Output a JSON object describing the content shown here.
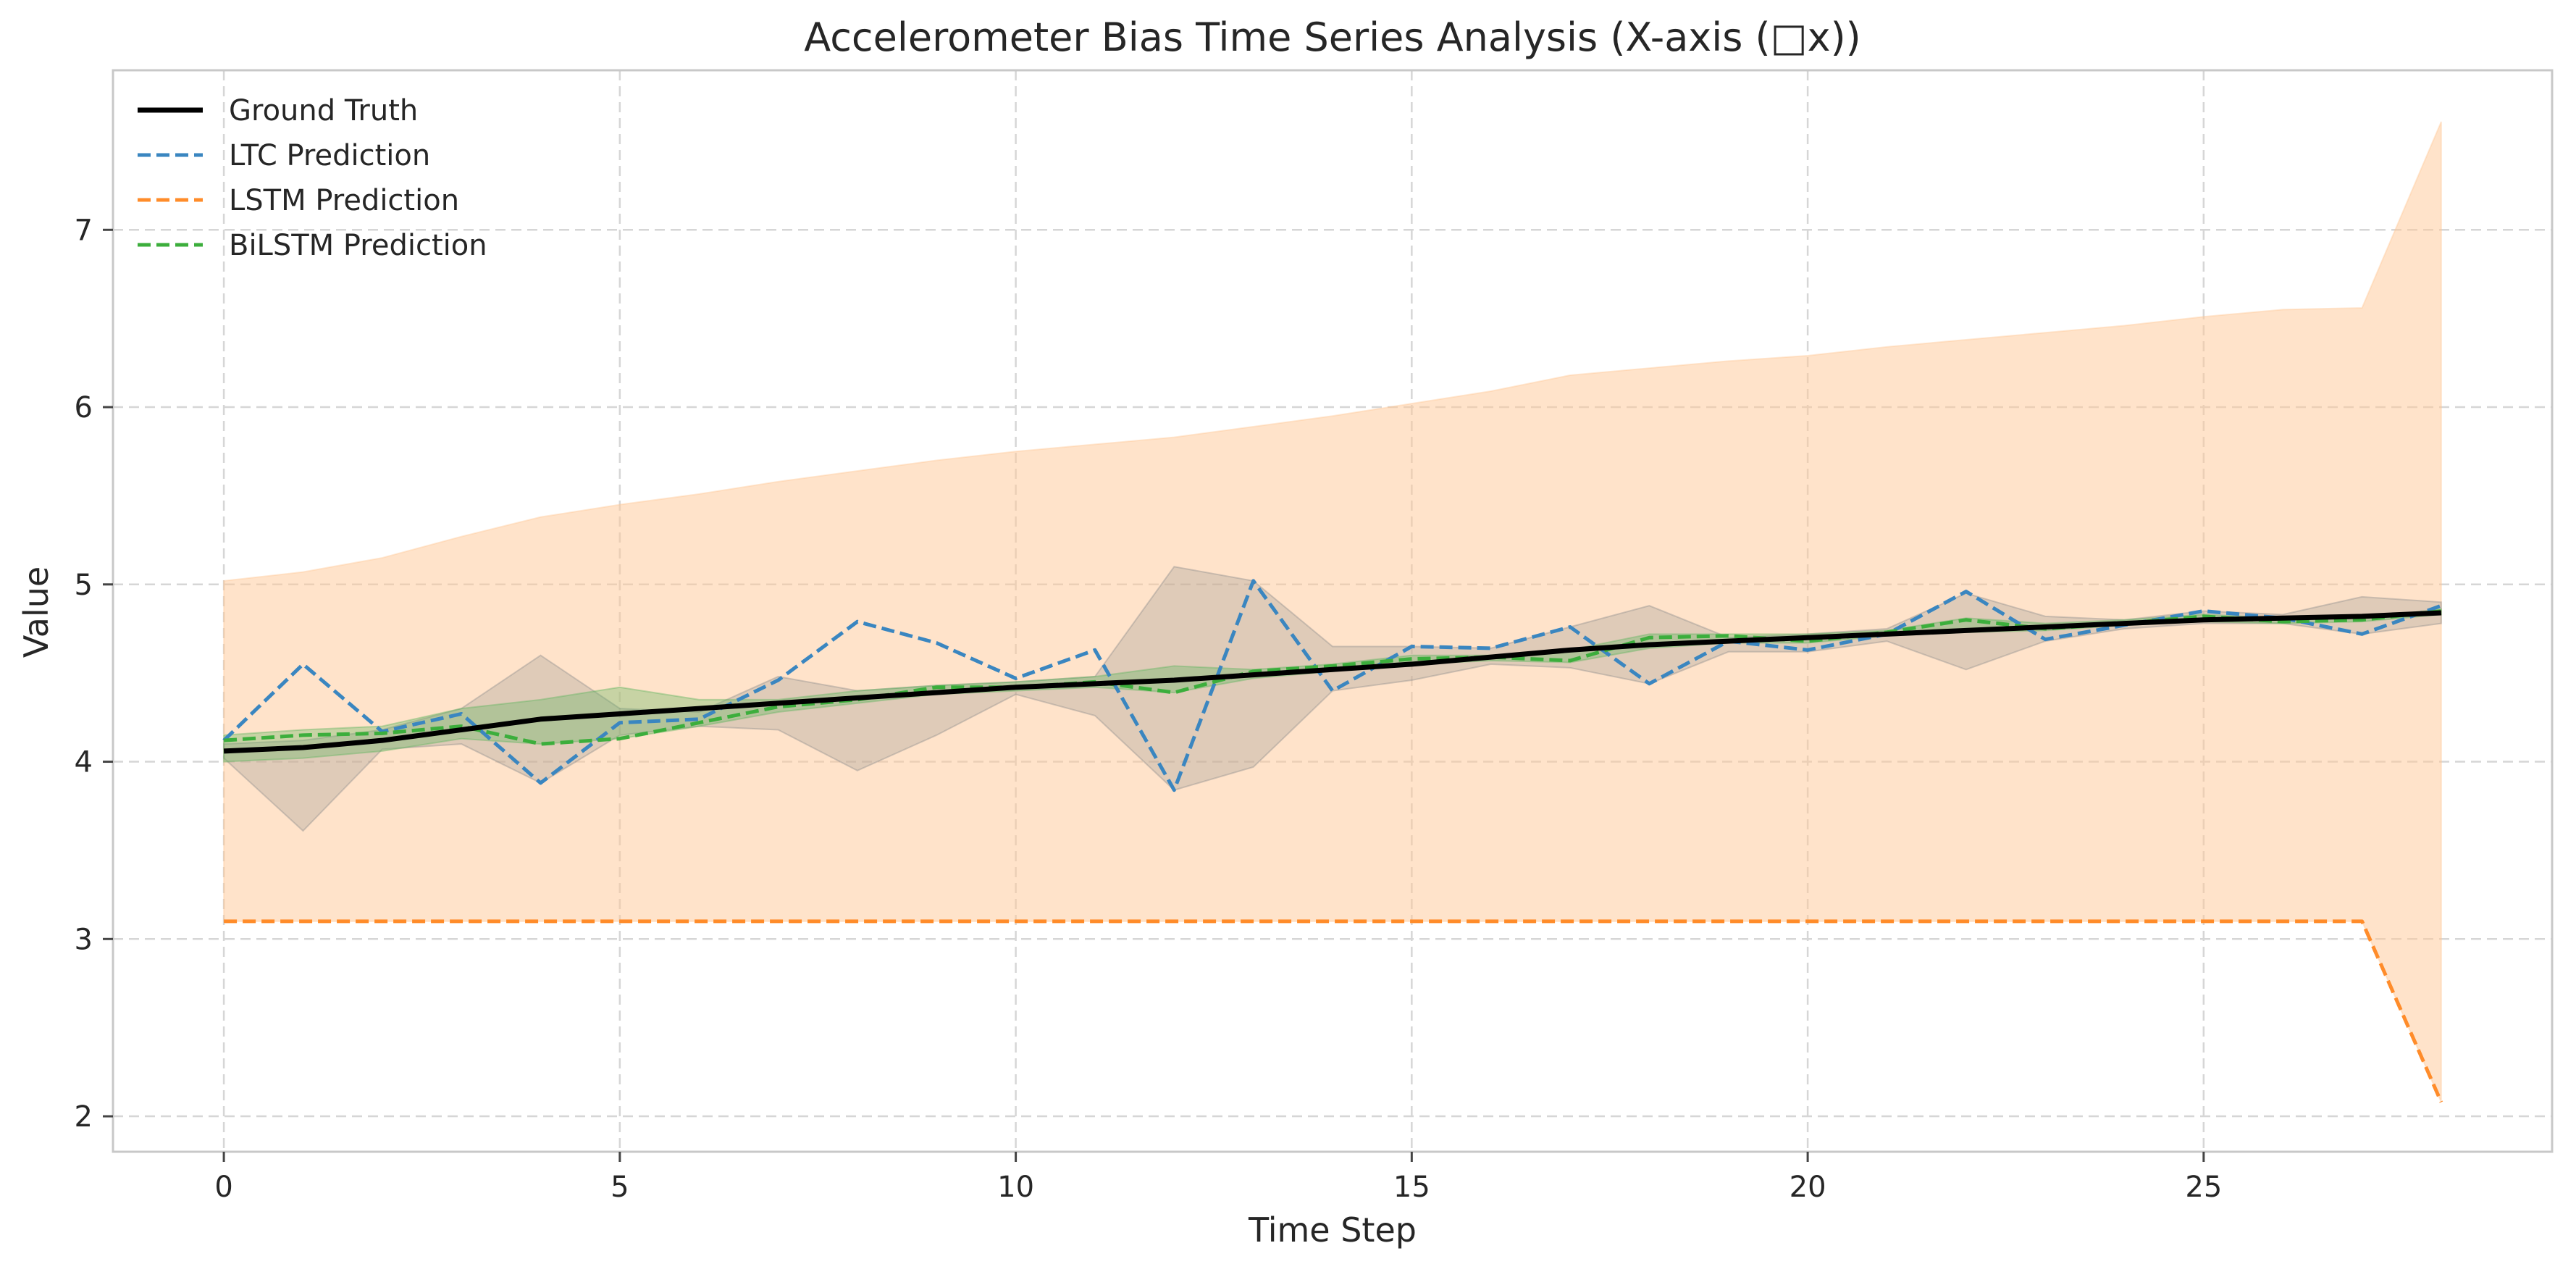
{
  "chart_data": {
    "type": "line",
    "title": "Accelerometer Bias Time Series Analysis (X-axis (□x))",
    "xlabel": "Time Step",
    "ylabel": "Value",
    "xlim": [
      -1.4,
      29.4
    ],
    "ylim": [
      1.8,
      7.9
    ],
    "xticks": [
      0,
      5,
      10,
      15,
      20,
      25
    ],
    "yticks": [
      2,
      3,
      4,
      5,
      6,
      7
    ],
    "grid": true,
    "legend_position": "top-left",
    "x": [
      0,
      1,
      2,
      3,
      4,
      5,
      6,
      7,
      8,
      9,
      10,
      11,
      12,
      13,
      14,
      15,
      16,
      17,
      18,
      19,
      20,
      21,
      22,
      23,
      24,
      25,
      26,
      27,
      28
    ],
    "series": [
      {
        "name": "Ground Truth",
        "color": "#000000",
        "dash": "solid",
        "values": [
          4.06,
          4.08,
          4.12,
          4.18,
          4.24,
          4.27,
          4.3,
          4.33,
          4.36,
          4.39,
          4.42,
          4.44,
          4.46,
          4.49,
          4.52,
          4.55,
          4.59,
          4.63,
          4.66,
          4.68,
          4.7,
          4.72,
          4.74,
          4.76,
          4.78,
          4.8,
          4.81,
          4.82,
          4.84
        ]
      },
      {
        "name": "LTC Prediction",
        "color": "#3a86c0",
        "dash": "dashed",
        "values": [
          4.12,
          4.55,
          4.17,
          4.27,
          3.88,
          4.22,
          4.24,
          4.46,
          4.79,
          4.67,
          4.47,
          4.63,
          3.84,
          5.02,
          4.4,
          4.65,
          4.64,
          4.76,
          4.44,
          4.68,
          4.63,
          4.72,
          4.96,
          4.69,
          4.77,
          4.85,
          4.81,
          4.72,
          4.88
        ]
      },
      {
        "name": "LSTM Prediction",
        "color": "#ff8c2a",
        "dash": "dashed",
        "values": [
          3.1,
          3.1,
          3.1,
          3.1,
          3.1,
          3.1,
          3.1,
          3.1,
          3.1,
          3.1,
          3.1,
          3.1,
          3.1,
          3.1,
          3.1,
          3.1,
          3.1,
          3.1,
          3.1,
          3.1,
          3.1,
          3.1,
          3.1,
          3.1,
          3.1,
          3.1,
          3.1,
          3.1,
          2.08
        ]
      },
      {
        "name": "BiLSTM Prediction",
        "color": "#3cae3c",
        "dash": "dashed",
        "values": [
          4.12,
          4.15,
          4.16,
          4.2,
          4.1,
          4.13,
          4.22,
          4.31,
          4.35,
          4.42,
          4.42,
          4.45,
          4.39,
          4.51,
          4.54,
          4.58,
          4.59,
          4.57,
          4.7,
          4.71,
          4.68,
          4.73,
          4.8,
          4.75,
          4.78,
          4.82,
          4.79,
          4.8,
          4.85
        ]
      }
    ],
    "bands": [
      {
        "series": "LSTM Prediction",
        "color": "#ffc896",
        "opacity": 0.5,
        "upper": [
          5.02,
          5.07,
          5.15,
          5.27,
          5.38,
          5.45,
          5.51,
          5.58,
          5.64,
          5.7,
          5.75,
          5.79,
          5.83,
          5.89,
          5.95,
          6.02,
          6.09,
          6.18,
          6.22,
          6.26,
          6.29,
          6.34,
          6.38,
          6.42,
          6.46,
          6.51,
          6.55,
          6.56,
          7.61
        ],
        "lower": [
          3.1,
          3.1,
          3.1,
          3.1,
          3.1,
          3.1,
          3.1,
          3.1,
          3.1,
          3.1,
          3.1,
          3.1,
          3.1,
          3.1,
          3.1,
          3.1,
          3.1,
          3.1,
          3.1,
          3.1,
          3.1,
          3.1,
          3.1,
          3.1,
          3.1,
          3.1,
          3.1,
          3.1,
          2.08
        ]
      },
      {
        "series": "LTC Prediction",
        "color": "#8c8c8c",
        "opacity": 0.28,
        "upper": [
          4.1,
          4.12,
          4.18,
          4.3,
          4.6,
          4.3,
          4.28,
          4.48,
          4.4,
          4.43,
          4.45,
          4.48,
          5.1,
          5.02,
          4.65,
          4.65,
          4.64,
          4.76,
          4.88,
          4.7,
          4.72,
          4.75,
          4.95,
          4.82,
          4.8,
          4.85,
          4.83,
          4.93,
          4.9
        ],
        "lower": [
          4.02,
          3.61,
          4.07,
          4.1,
          3.88,
          4.15,
          4.2,
          4.18,
          3.95,
          4.15,
          4.38,
          4.26,
          3.84,
          3.97,
          4.4,
          4.46,
          4.55,
          4.53,
          4.44,
          4.62,
          4.62,
          4.68,
          4.52,
          4.68,
          4.75,
          4.78,
          4.78,
          4.72,
          4.78
        ]
      },
      {
        "series": "BiLSTM Prediction",
        "color": "#5fb45f",
        "opacity": 0.35,
        "upper": [
          4.15,
          4.18,
          4.2,
          4.3,
          4.35,
          4.42,
          4.35,
          4.35,
          4.4,
          4.43,
          4.45,
          4.48,
          4.54,
          4.52,
          4.55,
          4.6,
          4.6,
          4.63,
          4.72,
          4.72,
          4.72,
          4.74,
          4.81,
          4.78,
          4.8,
          4.83,
          4.81,
          4.81,
          4.86
        ],
        "lower": [
          4.0,
          4.02,
          4.06,
          4.13,
          4.1,
          4.13,
          4.2,
          4.28,
          4.33,
          4.38,
          4.4,
          4.42,
          4.39,
          4.47,
          4.51,
          4.55,
          4.57,
          4.56,
          4.64,
          4.67,
          4.67,
          4.71,
          4.73,
          4.74,
          4.77,
          4.79,
          4.78,
          4.79,
          4.83
        ]
      }
    ]
  }
}
